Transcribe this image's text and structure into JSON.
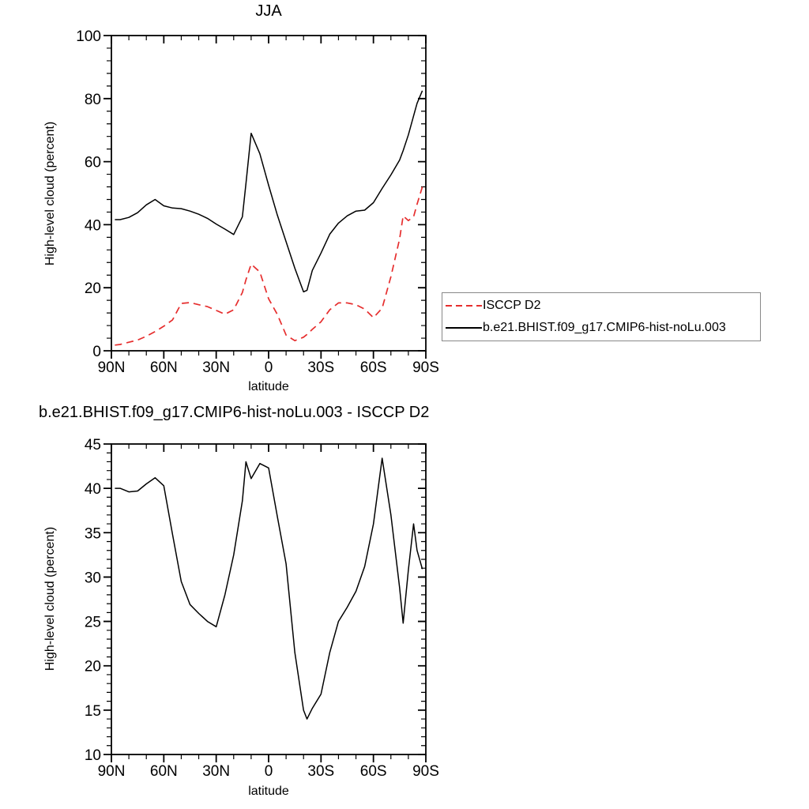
{
  "page": {
    "background": "#ffffff",
    "text_color": "#000000"
  },
  "legend": {
    "border_color": "#888888",
    "items": [
      {
        "label": "ISCCP D2",
        "line_style": "dashed",
        "color": "#e62e2e"
      },
      {
        "label": "b.e21.BHIST.f09_g17.CMIP6-hist-noLu.003",
        "line_style": "solid",
        "color": "#000000"
      }
    ]
  },
  "chart_data": [
    {
      "id": "jja-zonal-mean",
      "type": "line",
      "title": "JJA",
      "xlabel": "latitude",
      "ylabel": "High-level cloud (percent)",
      "legend_position": "outside-right",
      "grid": false,
      "x_axis": {
        "min": 90,
        "max": -90,
        "tick_values": [
          90,
          60,
          30,
          0,
          -30,
          -60,
          -90
        ],
        "tick_labels": [
          "90N",
          "60N",
          "30N",
          "0",
          "30S",
          "60S",
          "90S"
        ],
        "minor_step": 10
      },
      "y_axis": {
        "min": 0,
        "max": 100,
        "tick_values": [
          0,
          20,
          40,
          60,
          80,
          100
        ],
        "tick_labels": [
          "0",
          "20",
          "40",
          "60",
          "80",
          "100"
        ],
        "minor_step": 4
      },
      "x": [
        88,
        85,
        80,
        75,
        70,
        65,
        60,
        55,
        50,
        45,
        40,
        35,
        30,
        25,
        20,
        15,
        13,
        10,
        5,
        0,
        -5,
        -10,
        -15,
        -20,
        -22,
        -25,
        -30,
        -35,
        -40,
        -45,
        -50,
        -55,
        -60,
        -65,
        -70,
        -75,
        -77,
        -80,
        -83,
        -85,
        -88
      ],
      "series": [
        {
          "name": "ISCCP D2",
          "color": "#e62e2e",
          "style": "dashed",
          "width": 1.7,
          "values": [
            1.8,
            2.0,
            2.7,
            3.4,
            4.6,
            6.1,
            7.8,
            9.8,
            15.0,
            15.3,
            14.6,
            14.0,
            12.8,
            11.6,
            13.0,
            18.5,
            22.5,
            27.5,
            25.0,
            16.5,
            11.5,
            5.0,
            3.2,
            4.3,
            5.2,
            6.8,
            9.2,
            13.0,
            15.2,
            15.2,
            14.6,
            13.2,
            10.5,
            13.5,
            23.5,
            35.5,
            42.8,
            41.3,
            42.5,
            46.5,
            52.0
          ]
        },
        {
          "name": "b.e21.BHIST.f09_g17.CMIP6-hist-noLu.003",
          "color": "#000000",
          "style": "solid",
          "width": 1.5,
          "values": [
            41.6,
            41.6,
            42.3,
            43.8,
            46.3,
            48.0,
            46.0,
            45.3,
            45.1,
            44.3,
            43.3,
            42.0,
            40.2,
            38.6,
            36.9,
            42.5,
            53.0,
            69.0,
            62.5,
            52.5,
            43.0,
            34.6,
            26.2,
            18.7,
            19.2,
            25.5,
            31.0,
            37.0,
            40.5,
            42.8,
            44.3,
            44.6,
            47.0,
            51.5,
            55.8,
            60.5,
            63.5,
            68.5,
            74.5,
            78.5,
            82.5
          ]
        }
      ]
    },
    {
      "id": "difference-model-minus-isccp",
      "type": "line",
      "title": "b.e21.BHIST.f09_g17.CMIP6-hist-noLu.003 - ISCCP D2",
      "xlabel": "latitude",
      "ylabel": "High-level cloud (percent)",
      "legend_position": "none",
      "grid": false,
      "x_axis": {
        "min": 90,
        "max": -90,
        "tick_values": [
          90,
          60,
          30,
          0,
          -30,
          -60,
          -90
        ],
        "tick_labels": [
          "90N",
          "60N",
          "30N",
          "0",
          "30S",
          "60S",
          "90S"
        ],
        "minor_step": 10
      },
      "y_axis": {
        "min": 10,
        "max": 45,
        "tick_values": [
          10,
          15,
          20,
          25,
          30,
          35,
          40,
          45
        ],
        "tick_labels": [
          "10",
          "15",
          "20",
          "25",
          "30",
          "35",
          "40",
          "45"
        ],
        "minor_step": 1
      },
      "x": [
        88,
        85,
        80,
        75,
        70,
        65,
        60,
        55,
        50,
        45,
        40,
        35,
        30,
        25,
        20,
        15,
        13,
        10,
        5,
        0,
        -5,
        -10,
        -15,
        -20,
        -22,
        -25,
        -30,
        -35,
        -40,
        -45,
        -50,
        -55,
        -60,
        -65,
        -70,
        -75,
        -77,
        -80,
        -83,
        -85,
        -88
      ],
      "series": [
        {
          "name": "b.e21.BHIST.f09_g17.CMIP6-hist-noLu.003 - ISCCP D2",
          "color": "#000000",
          "style": "solid",
          "width": 1.5,
          "values": [
            40.0,
            40.0,
            39.6,
            39.7,
            40.5,
            41.2,
            40.3,
            34.8,
            29.5,
            26.9,
            25.9,
            25.0,
            24.4,
            28.0,
            32.5,
            38.6,
            43.0,
            41.1,
            42.8,
            42.3,
            36.8,
            31.5,
            21.5,
            15.0,
            14.0,
            15.2,
            16.8,
            21.5,
            25.0,
            26.6,
            28.4,
            31.2,
            36.0,
            43.4,
            37.0,
            28.8,
            24.8,
            30.8,
            36.0,
            33.0,
            30.9
          ]
        }
      ]
    }
  ]
}
